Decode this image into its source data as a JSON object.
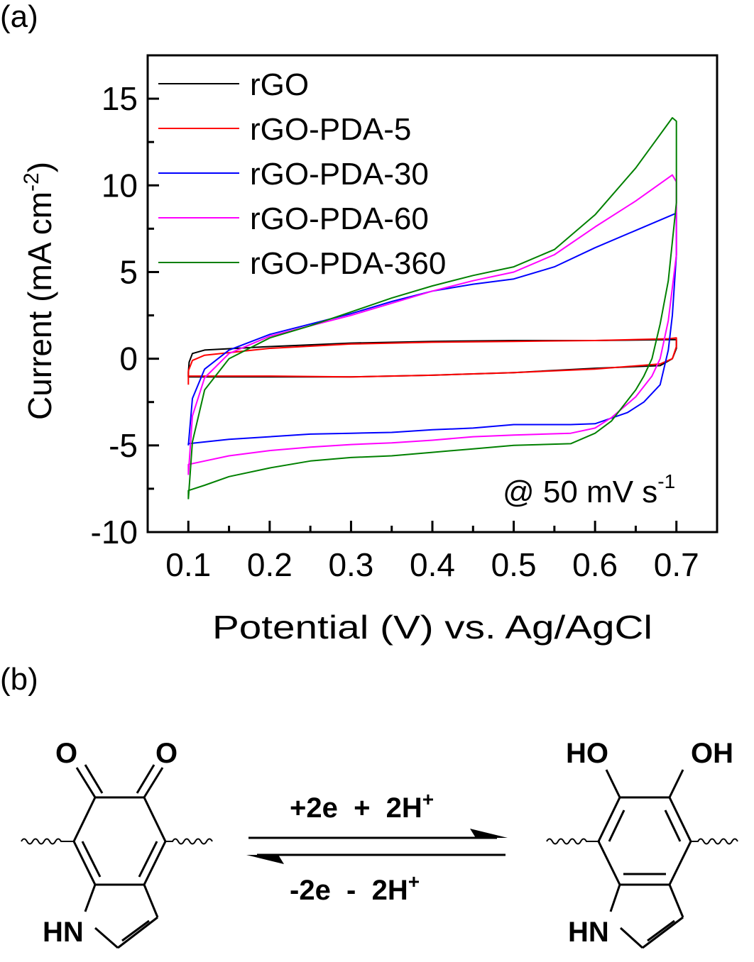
{
  "panel_a_label": "(a)",
  "panel_b_label": "(b)",
  "chart_data": {
    "type": "line",
    "title": "",
    "xlabel": "Potential (V) vs. Ag/AgCl",
    "ylabel": "Current (mA cm",
    "ylabel_sup": "-2",
    "ylabel_end": ")",
    "xlim": [
      0.05,
      0.75
    ],
    "ylim": [
      -10,
      17.5
    ],
    "xticks": [
      0.1,
      0.2,
      0.3,
      0.4,
      0.5,
      0.6,
      0.7
    ],
    "xtick_labels": [
      "0.1",
      "0.2",
      "0.3",
      "0.4",
      "0.5",
      "0.6",
      "0.7"
    ],
    "yticks": [
      -10,
      -5,
      0,
      5,
      10,
      15
    ],
    "ytick_labels": [
      "-10",
      "-5",
      "0",
      "5",
      "10",
      "15"
    ],
    "grid": false,
    "legend_position": "top-left",
    "annotation": {
      "text": "@ 50 mV s",
      "sup": "-1",
      "position": "bottom-right"
    },
    "series": [
      {
        "name": "rGO",
        "color": "#000000",
        "x": [
          0.1,
          0.101,
          0.105,
          0.12,
          0.2,
          0.3,
          0.4,
          0.5,
          0.6,
          0.69,
          0.7,
          0.7,
          0.695,
          0.68,
          0.6,
          0.5,
          0.4,
          0.3,
          0.2,
          0.12,
          0.1,
          0.1
        ],
        "y": [
          -0.8,
          -0.2,
          0.3,
          0.5,
          0.7,
          0.9,
          1.0,
          1.05,
          1.05,
          1.1,
          1.1,
          0.6,
          0.0,
          -0.4,
          -0.55,
          -0.8,
          -0.95,
          -1.05,
          -1.05,
          -1.05,
          -1.05,
          -0.8
        ]
      },
      {
        "name": "rGO-PDA-5",
        "color": "#ff0000",
        "x": [
          0.1,
          0.1,
          0.105,
          0.12,
          0.2,
          0.3,
          0.4,
          0.5,
          0.6,
          0.69,
          0.7,
          0.7,
          0.695,
          0.68,
          0.6,
          0.5,
          0.4,
          0.3,
          0.2,
          0.11,
          0.1,
          0.1
        ],
        "y": [
          -1.5,
          -0.7,
          -0.1,
          0.2,
          0.6,
          0.85,
          0.95,
          1.0,
          1.05,
          1.15,
          1.2,
          0.7,
          0.0,
          -0.3,
          -0.6,
          -0.8,
          -0.95,
          -1.05,
          -1.0,
          -1.0,
          -1.0,
          -1.5
        ]
      },
      {
        "name": "rGO-PDA-30",
        "color": "#0000ff",
        "x": [
          0.1,
          0.105,
          0.12,
          0.15,
          0.2,
          0.25,
          0.3,
          0.35,
          0.4,
          0.45,
          0.5,
          0.55,
          0.6,
          0.65,
          0.7,
          0.7,
          0.695,
          0.69,
          0.68,
          0.66,
          0.64,
          0.6,
          0.57,
          0.5,
          0.45,
          0.4,
          0.35,
          0.3,
          0.25,
          0.2,
          0.15,
          0.1,
          0.1
        ],
        "y": [
          -5.0,
          -2.3,
          -0.6,
          0.5,
          1.4,
          2.0,
          2.6,
          3.3,
          3.9,
          4.3,
          4.6,
          5.3,
          6.4,
          7.4,
          8.4,
          6.0,
          2.5,
          0.5,
          -1.5,
          -2.5,
          -3.1,
          -3.75,
          -3.8,
          -3.8,
          -4.0,
          -4.1,
          -4.25,
          -4.3,
          -4.35,
          -4.5,
          -4.65,
          -4.9,
          -5.0
        ]
      },
      {
        "name": "rGO-PDA-60",
        "color": "#ff00ff",
        "x": [
          0.1,
          0.105,
          0.12,
          0.15,
          0.2,
          0.25,
          0.3,
          0.35,
          0.4,
          0.45,
          0.5,
          0.55,
          0.6,
          0.65,
          0.695,
          0.7,
          0.7,
          0.69,
          0.68,
          0.67,
          0.65,
          0.62,
          0.6,
          0.57,
          0.5,
          0.45,
          0.4,
          0.35,
          0.3,
          0.25,
          0.2,
          0.15,
          0.1,
          0.1
        ],
        "y": [
          -6.7,
          -3.3,
          -1.1,
          0.3,
          1.3,
          1.9,
          2.5,
          3.2,
          3.9,
          4.5,
          5.0,
          6.0,
          7.6,
          9.1,
          10.6,
          10.2,
          6.0,
          2.2,
          0.0,
          -1.0,
          -2.2,
          -3.4,
          -4.0,
          -4.3,
          -4.4,
          -4.5,
          -4.7,
          -4.85,
          -4.95,
          -5.1,
          -5.3,
          -5.6,
          -6.1,
          -6.7
        ]
      },
      {
        "name": "rGO-PDA-360",
        "color": "#008000",
        "x": [
          0.1,
          0.105,
          0.12,
          0.15,
          0.2,
          0.25,
          0.3,
          0.35,
          0.4,
          0.45,
          0.5,
          0.55,
          0.6,
          0.65,
          0.695,
          0.7,
          0.7,
          0.69,
          0.68,
          0.67,
          0.66,
          0.65,
          0.62,
          0.6,
          0.57,
          0.5,
          0.45,
          0.4,
          0.35,
          0.3,
          0.25,
          0.2,
          0.15,
          0.12,
          0.1,
          0.1
        ],
        "y": [
          -8.1,
          -4.8,
          -1.8,
          0.0,
          1.2,
          1.9,
          2.7,
          3.5,
          4.2,
          4.8,
          5.3,
          6.3,
          8.3,
          11.0,
          13.9,
          13.7,
          9.0,
          4.5,
          2.0,
          0.0,
          -1.0,
          -1.8,
          -3.6,
          -4.3,
          -4.9,
          -5.0,
          -5.2,
          -5.4,
          -5.6,
          -5.7,
          -5.9,
          -6.3,
          -6.8,
          -7.3,
          -7.6,
          -8.1
        ]
      }
    ]
  },
  "scheme": {
    "left_molecule": {
      "name": "indole-5,6-quinone",
      "atoms": [
        "O",
        "O",
        "HN"
      ]
    },
    "right_molecule": {
      "name": "5,6-dihydroxyindole",
      "atoms": [
        "HO",
        "OH",
        "HN"
      ]
    },
    "forward_label": "+2e  +  2H",
    "forward_sup": "+",
    "reverse_label": "-2e  -  2H",
    "reverse_sup": "+"
  }
}
